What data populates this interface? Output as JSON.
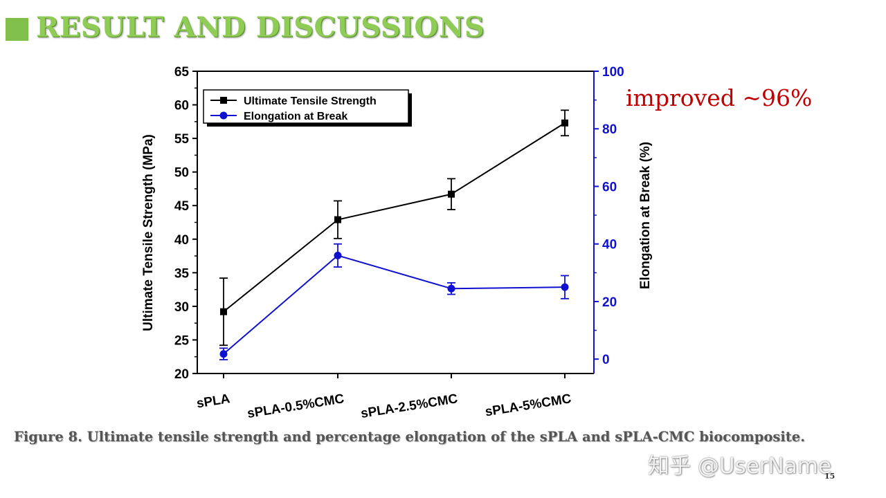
{
  "slide": {
    "title": "RESULT AND DISCUSSIONS",
    "annotation": "improved ~96%",
    "caption": "Figure 8. Ultimate tensile strength and percentage elongation of the sPLA and sPLA-CMC biocomposite.",
    "watermark": "知乎 @UserName",
    "page_number": "15",
    "colors": {
      "title": "#8fcc55",
      "annotation": "#c00000",
      "series1": "#000000",
      "series2": "#1010d0"
    }
  },
  "chart_data": {
    "type": "line",
    "categories": [
      "sPLA",
      "sPLA-0.5%CMC",
      "sPLA-2.5%CMC",
      "sPLA-5%CMC"
    ],
    "ylabel": "Ultimate Tensile Strength (MPa)",
    "y2label": "Elongation at Break (%)",
    "ylim": [
      20,
      65
    ],
    "yticks": [
      20,
      25,
      30,
      35,
      40,
      45,
      50,
      55,
      60,
      65
    ],
    "y2lim": [
      -5,
      100
    ],
    "y2ticks": [
      0,
      20,
      40,
      60,
      80,
      100
    ],
    "legend_position": "top-left",
    "series": [
      {
        "name": "Ultimate Tensile Strength",
        "axis": "left",
        "marker": "square",
        "color": "#000000",
        "values": [
          29.2,
          42.9,
          46.7,
          57.3
        ],
        "errors": [
          5.0,
          2.8,
          2.3,
          1.9
        ]
      },
      {
        "name": "Elongation at Break",
        "axis": "right",
        "marker": "circle",
        "color": "#1010d0",
        "values": [
          1.8,
          36.0,
          24.5,
          25.0
        ],
        "errors": [
          2.0,
          4.0,
          2.0,
          4.0
        ]
      }
    ]
  }
}
